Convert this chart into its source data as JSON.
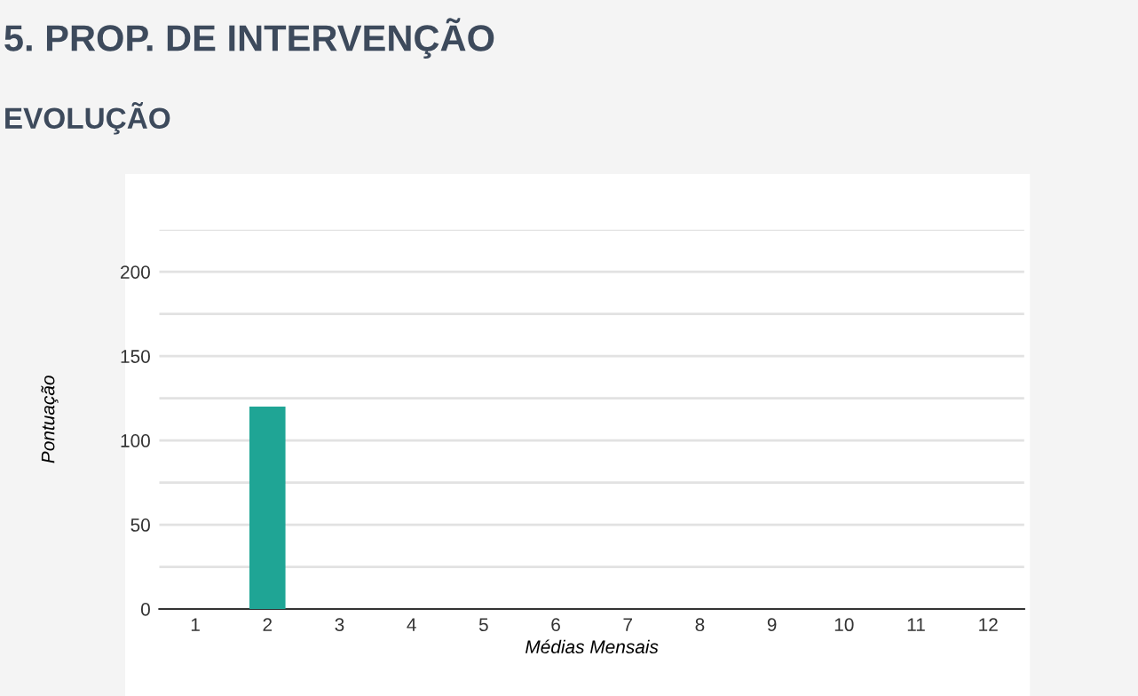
{
  "chart_data": {
    "type": "bar",
    "title": "5. PROP. DE INTERVENÇÃO",
    "subtitle": "EVOLUÇÃO",
    "xlabel": "Médias Mensais",
    "ylabel": "Pontuação",
    "categories": [
      "1",
      "2",
      "3",
      "4",
      "5",
      "6",
      "7",
      "8",
      "9",
      "10",
      "11",
      "12"
    ],
    "values": [
      0,
      120,
      0,
      0,
      0,
      0,
      0,
      0,
      0,
      0,
      0,
      0
    ],
    "color": "#1fa595",
    "ylim": [
      0,
      225
    ],
    "yticks": [
      0,
      {
        "value": 25,
        "label": null
      },
      50,
      {
        "value": 75,
        "label": null
      },
      100,
      {
        "value": 125,
        "label": null
      },
      150,
      {
        "value": 175,
        "label": null
      },
      200,
      {
        "value": 225,
        "label": null
      }
    ],
    "grid": "y",
    "legend": false
  }
}
